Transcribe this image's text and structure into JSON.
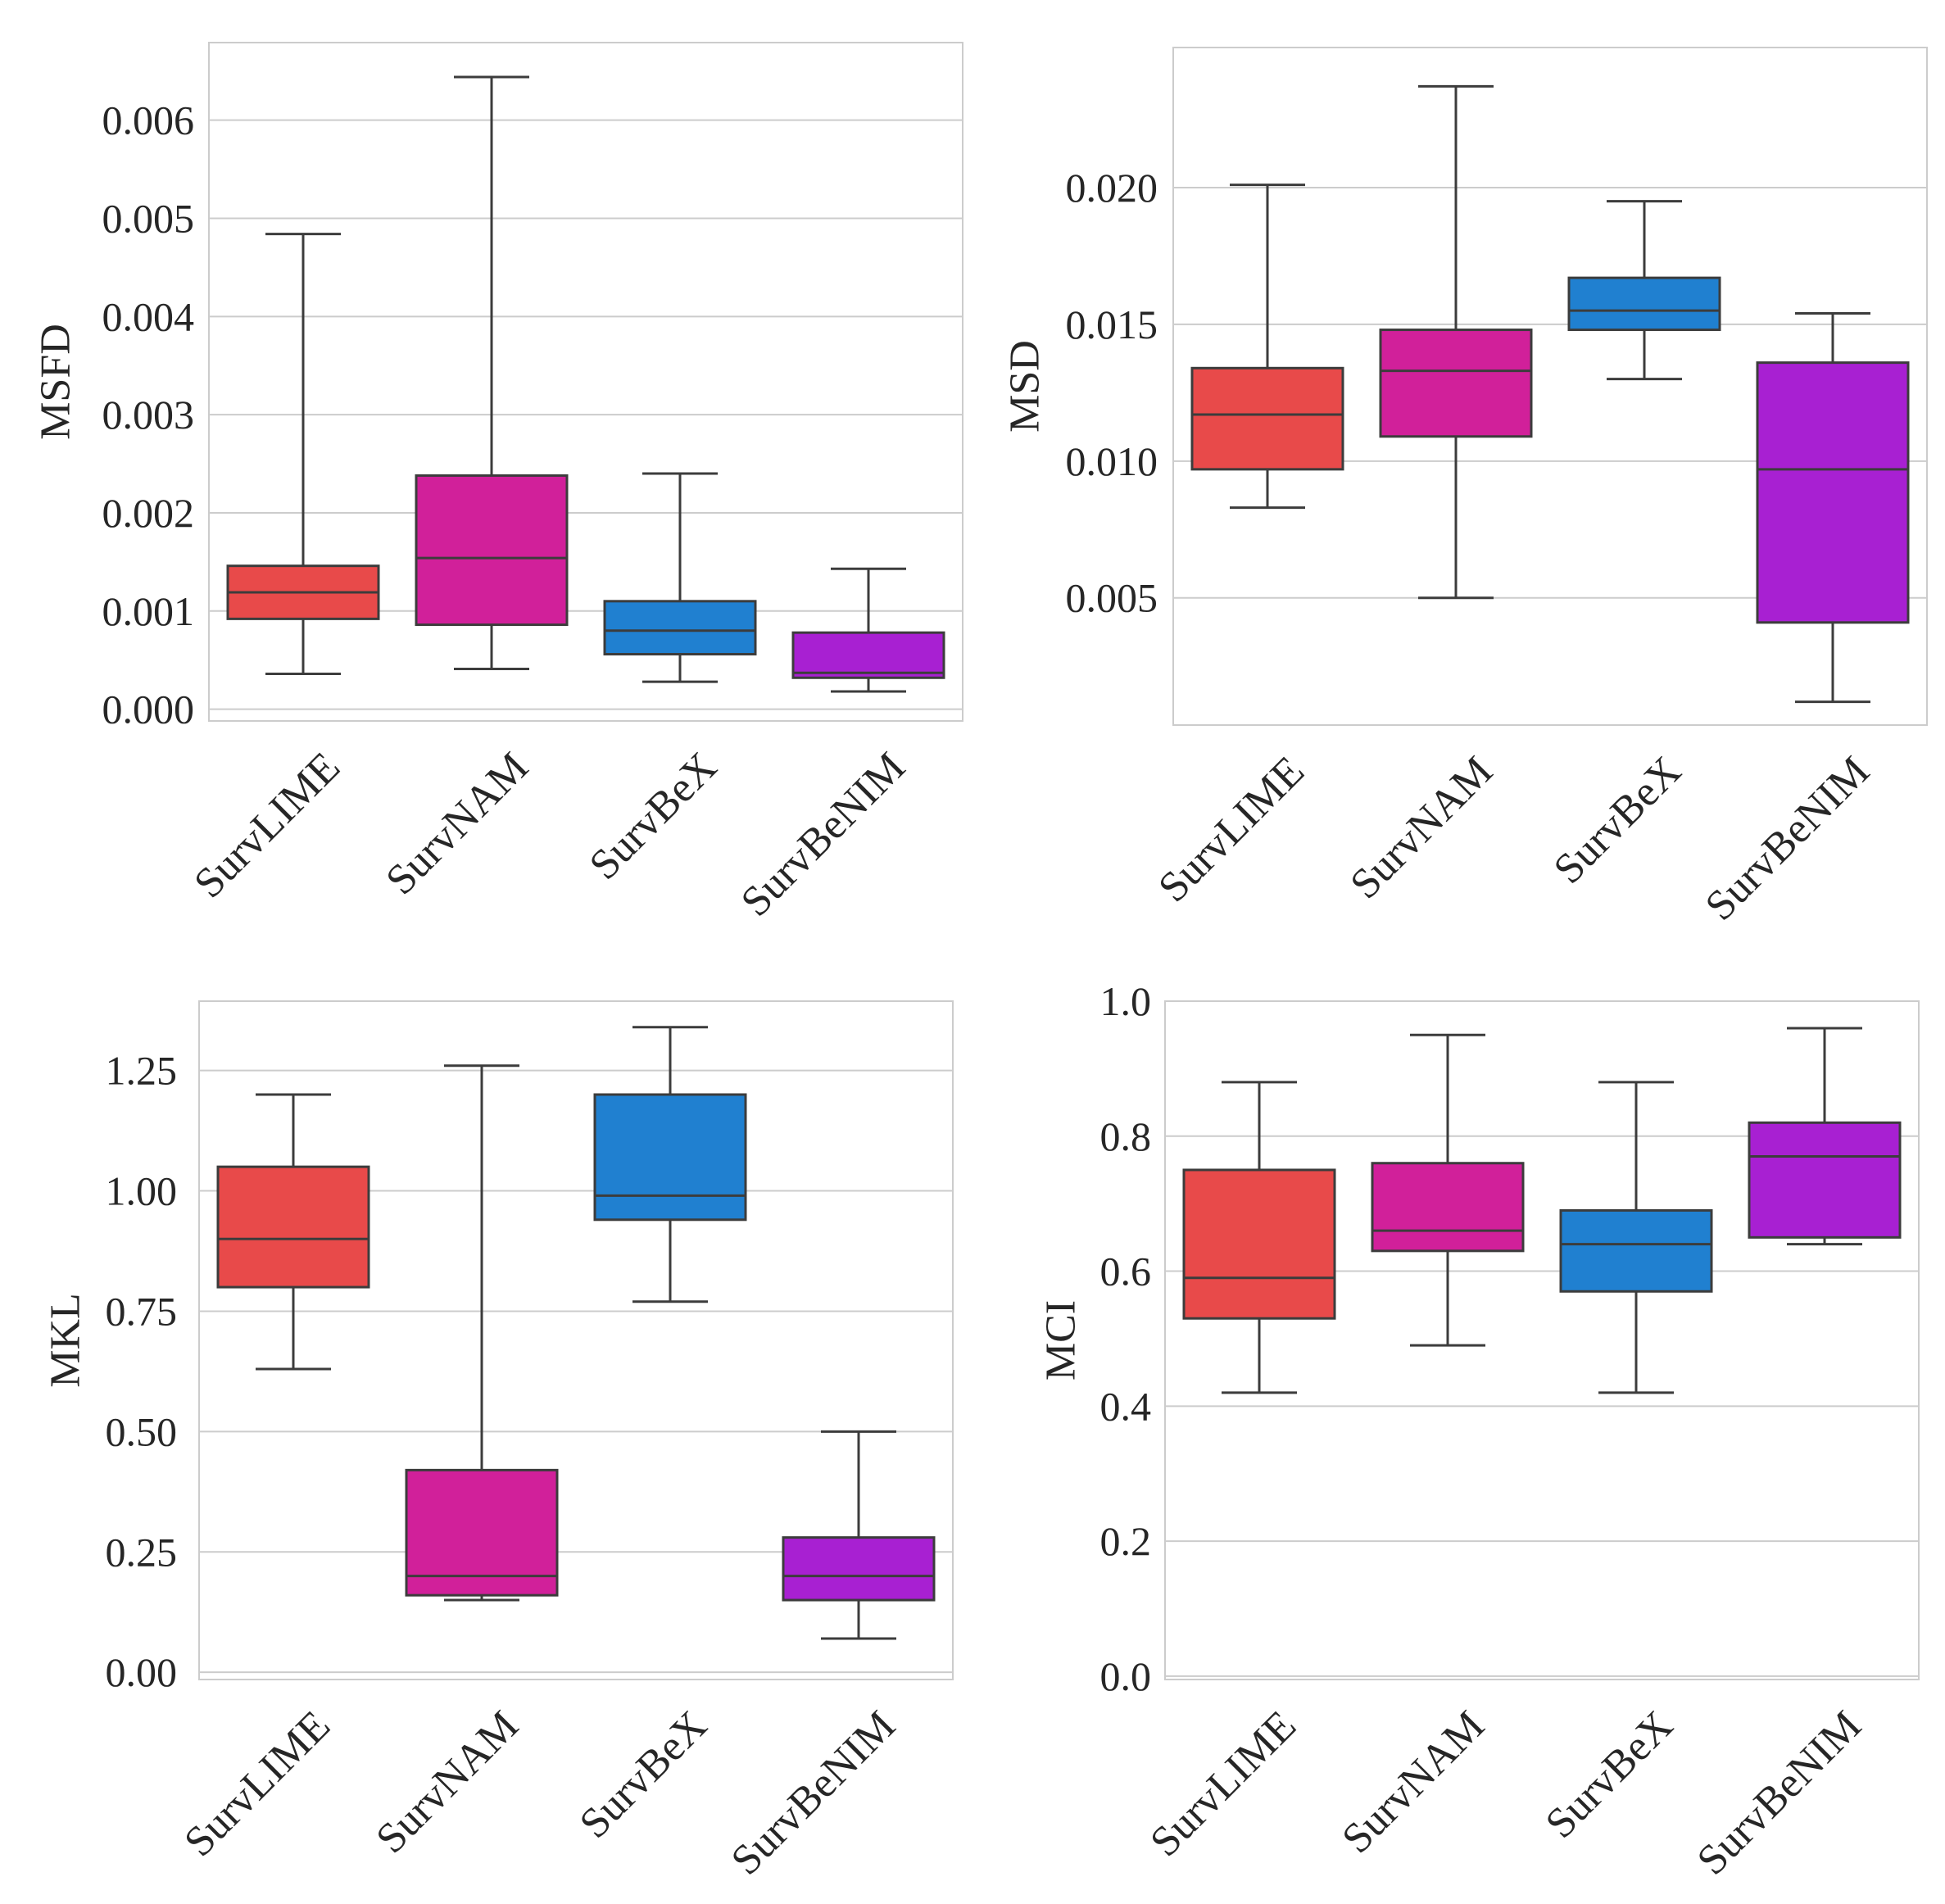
{
  "chart_data": [
    {
      "type": "box",
      "ylabel": "MSFD",
      "categories": [
        "SurvLIME",
        "SurvNAM",
        "SurvBeX",
        "SurvBeNIM"
      ],
      "yticks": [
        0.0,
        0.001,
        0.002,
        0.003,
        0.004,
        0.005,
        0.006
      ],
      "ytick_labels": [
        "0.000",
        "0.001",
        "0.002",
        "0.003",
        "0.004",
        "0.005",
        "0.006"
      ],
      "ylim": [
        -0.00012,
        0.00679
      ],
      "boxes": [
        {
          "whislo": 0.00036,
          "q1": 0.00092,
          "med": 0.00119,
          "q3": 0.00146,
          "whishi": 0.00484
        },
        {
          "whislo": 0.00041,
          "q1": 0.00086,
          "med": 0.00154,
          "q3": 0.00238,
          "whishi": 0.00644
        },
        {
          "whislo": 0.00028,
          "q1": 0.00056,
          "med": 0.0008,
          "q3": 0.0011,
          "whishi": 0.0024
        },
        {
          "whislo": 0.00018,
          "q1": 0.00032,
          "med": 0.00037,
          "q3": 0.00078,
          "whishi": 0.00143
        }
      ],
      "grid": true
    },
    {
      "type": "box",
      "ylabel": "MSD",
      "categories": [
        "SurvLIME",
        "SurvNAM",
        "SurvBeX",
        "SurvBeNIM"
      ],
      "yticks": [
        0.005,
        0.01,
        0.015,
        0.02
      ],
      "ytick_labels": [
        "0.005",
        "0.010",
        "0.015",
        "0.020"
      ],
      "ylim": [
        0.00035,
        0.02512
      ],
      "boxes": [
        {
          "whislo": 0.0083,
          "q1": 0.0097,
          "med": 0.0117,
          "q3": 0.0134,
          "whishi": 0.0201
        },
        {
          "whislo": 0.005,
          "q1": 0.0109,
          "med": 0.0133,
          "q3": 0.0148,
          "whishi": 0.0237
        },
        {
          "whislo": 0.013,
          "q1": 0.0148,
          "med": 0.0155,
          "q3": 0.0167,
          "whishi": 0.0195
        },
        {
          "whislo": 0.0012,
          "q1": 0.0041,
          "med": 0.0097,
          "q3": 0.0136,
          "whishi": 0.0154
        }
      ],
      "grid": true
    },
    {
      "type": "box",
      "ylabel": "MKL",
      "categories": [
        "SurvLIME",
        "SurvNAM",
        "SurvBeX",
        "SurvBeNIM"
      ],
      "yticks": [
        0.0,
        0.25,
        0.5,
        0.75,
        1.0,
        1.25
      ],
      "ytick_labels": [
        "0.00",
        "0.25",
        "0.50",
        "0.75",
        "1.00",
        "1.25"
      ],
      "ylim": [
        -0.015,
        1.394
      ],
      "boxes": [
        {
          "whislo": 0.63,
          "q1": 0.8,
          "med": 0.9,
          "q3": 1.05,
          "whishi": 1.2
        },
        {
          "whislo": 0.15,
          "q1": 0.16,
          "med": 0.2,
          "q3": 0.42,
          "whishi": 1.26
        },
        {
          "whislo": 0.77,
          "q1": 0.94,
          "med": 0.99,
          "q3": 1.2,
          "whishi": 1.34
        },
        {
          "whislo": 0.07,
          "q1": 0.15,
          "med": 0.2,
          "q3": 0.28,
          "whishi": 0.5
        }
      ],
      "grid": true
    },
    {
      "type": "box",
      "ylabel": "MCI",
      "categories": [
        "SurvLIME",
        "SurvNAM",
        "SurvBeX",
        "SurvBeNIM"
      ],
      "yticks": [
        0.0,
        0.2,
        0.4,
        0.6,
        0.8,
        1.0
      ],
      "ytick_labels": [
        "0.0",
        "0.2",
        "0.4",
        "0.6",
        "0.8",
        "1.0"
      ],
      "ylim": [
        -0.005,
        1.0
      ],
      "boxes": [
        {
          "whislo": 0.42,
          "q1": 0.53,
          "med": 0.59,
          "q3": 0.75,
          "whishi": 0.88
        },
        {
          "whislo": 0.49,
          "q1": 0.63,
          "med": 0.66,
          "q3": 0.76,
          "whishi": 0.95
        },
        {
          "whislo": 0.42,
          "q1": 0.57,
          "med": 0.64,
          "q3": 0.69,
          "whishi": 0.88
        },
        {
          "whislo": 0.64,
          "q1": 0.65,
          "med": 0.77,
          "q3": 0.82,
          "whishi": 0.96
        }
      ],
      "grid": true
    }
  ],
  "colors": {
    "categories": [
      "#e84a4a",
      "#d1209a",
      "#2080d0",
      "#a820d2"
    ],
    "line": "#3c3c3c",
    "grid": "#cccccc",
    "frame": "#cccccc",
    "text": "#262626"
  }
}
